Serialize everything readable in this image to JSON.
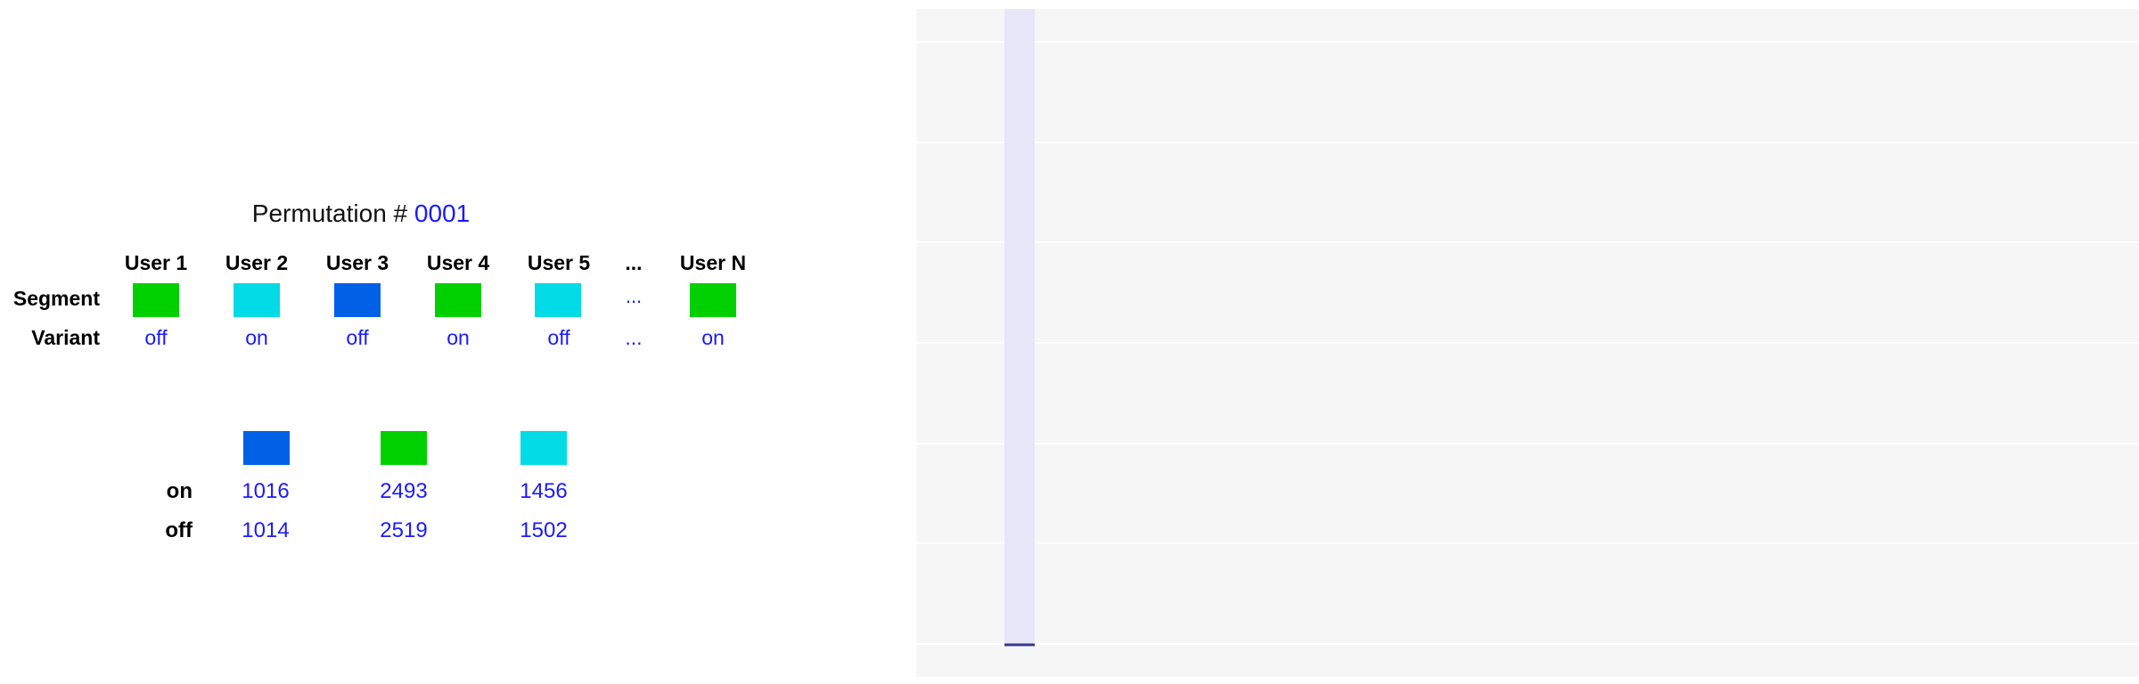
{
  "permutation": {
    "label": "Permutation #",
    "number": "0001"
  },
  "row_labels": {
    "segment": "Segment",
    "variant": "Variant"
  },
  "users": [
    {
      "label": "User 1",
      "segment_color": "#00d000",
      "variant": "off"
    },
    {
      "label": "User 2",
      "segment_color": "#00dbe6",
      "variant": "on"
    },
    {
      "label": "User 3",
      "segment_color": "#0060e6",
      "variant": "off"
    },
    {
      "label": "User 4",
      "segment_color": "#00d000",
      "variant": "on"
    },
    {
      "label": "User 5",
      "segment_color": "#00dbe6",
      "variant": "off"
    },
    {
      "label": "...",
      "segment_color": null,
      "segment_text": "...",
      "variant": "..."
    },
    {
      "label": "User N",
      "segment_color": "#00d000",
      "variant": "on"
    }
  ],
  "summary": {
    "row_labels": {
      "on": "on",
      "off": "off"
    },
    "segments": [
      {
        "color": "#0060e6",
        "on": "1016",
        "off": "1014"
      },
      {
        "color": "#00d000",
        "on": "2493",
        "off": "2519"
      },
      {
        "color": "#00dbe6",
        "on": "1456",
        "off": "1502"
      }
    ]
  },
  "chart_data": {
    "type": "bar",
    "title": "",
    "xlabel": "",
    "ylabel": "",
    "bar_color": "#e6e6f8",
    "bar_edge_color": "#3a3a8c",
    "tick_labels_visible": false,
    "grid": "horizontal",
    "values": [
      1
    ]
  }
}
